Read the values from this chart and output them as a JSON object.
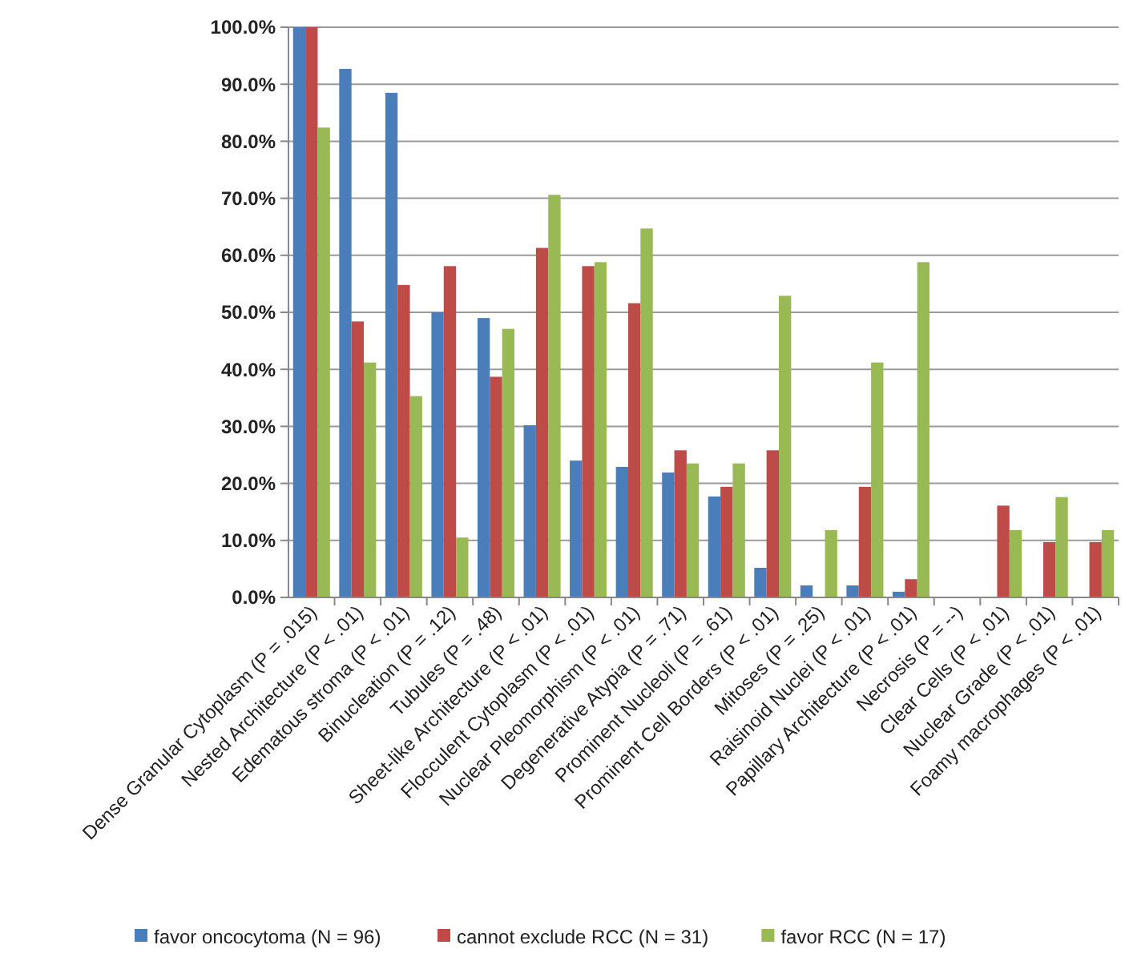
{
  "chart_data": {
    "type": "bar",
    "categories": [
      "Dense Granular Cytoplasm (P = .015)",
      "Nested Architecture (P < .01)",
      "Edematous stroma (P < .01)",
      "Binucleation (P = .12)",
      "Tubules (P = .48)",
      "Sheet-like Architecture (P < .01)",
      "Flocculent Cytoplasm (P < .01)",
      "Nuclear Pleomorphism (P < .01)",
      "Degenerative Atypia (P = .71)",
      "Prominent Nucleoli (P = .61)",
      "Prominent Cell Borders (P < .01)",
      "Mitoses (P = .25)",
      "Raisinoid Nuclei (P < .01)",
      "Papillary Architecture (P < .01)",
      "Necrosis (P = --)",
      "Clear Cells (P < .01)",
      "Nuclear Grade (P < .01)",
      "Foamy macrophages (P < .01)"
    ],
    "series": [
      {
        "name": "favor oncocytoma (N = 96)",
        "color": "#4a7ebb",
        "values": [
          100,
          92.7,
          88.5,
          50,
          49,
          30.2,
          24,
          22.9,
          21.9,
          17.7,
          5.2,
          2.1,
          2.1,
          1,
          0,
          0,
          0,
          0
        ]
      },
      {
        "name": "cannot exclude RCC (N = 31)",
        "color": "#be4b48",
        "values": [
          100,
          48.4,
          54.8,
          58.1,
          38.7,
          61.3,
          58.1,
          51.6,
          25.8,
          19.4,
          25.8,
          0,
          19.4,
          3.2,
          0,
          16.1,
          9.7,
          9.7
        ]
      },
      {
        "name": "favor RCC (N = 17)",
        "color": "#98b954",
        "values": [
          82.4,
          41.2,
          35.3,
          10.5,
          47.1,
          70.6,
          58.8,
          64.7,
          23.5,
          23.5,
          52.9,
          11.8,
          41.2,
          58.8,
          0,
          11.8,
          17.6,
          11.8
        ]
      }
    ],
    "ylim": [
      0,
      100
    ],
    "yticks": [
      {
        "value": 0,
        "label": "0.0%"
      },
      {
        "value": 10,
        "label": "10.0%"
      },
      {
        "value": 20,
        "label": "20.0%"
      },
      {
        "value": 30,
        "label": "30.0%"
      },
      {
        "value": 40,
        "label": "40.0%"
      },
      {
        "value": 50,
        "label": "50.0%"
      },
      {
        "value": 60,
        "label": "60.0%"
      },
      {
        "value": 70,
        "label": "70.0%"
      },
      {
        "value": 80,
        "label": "80.0%"
      },
      {
        "value": 90,
        "label": "90.0%"
      },
      {
        "value": 100,
        "label": "100.0%"
      }
    ],
    "grid": "y",
    "legend": "bottom"
  }
}
